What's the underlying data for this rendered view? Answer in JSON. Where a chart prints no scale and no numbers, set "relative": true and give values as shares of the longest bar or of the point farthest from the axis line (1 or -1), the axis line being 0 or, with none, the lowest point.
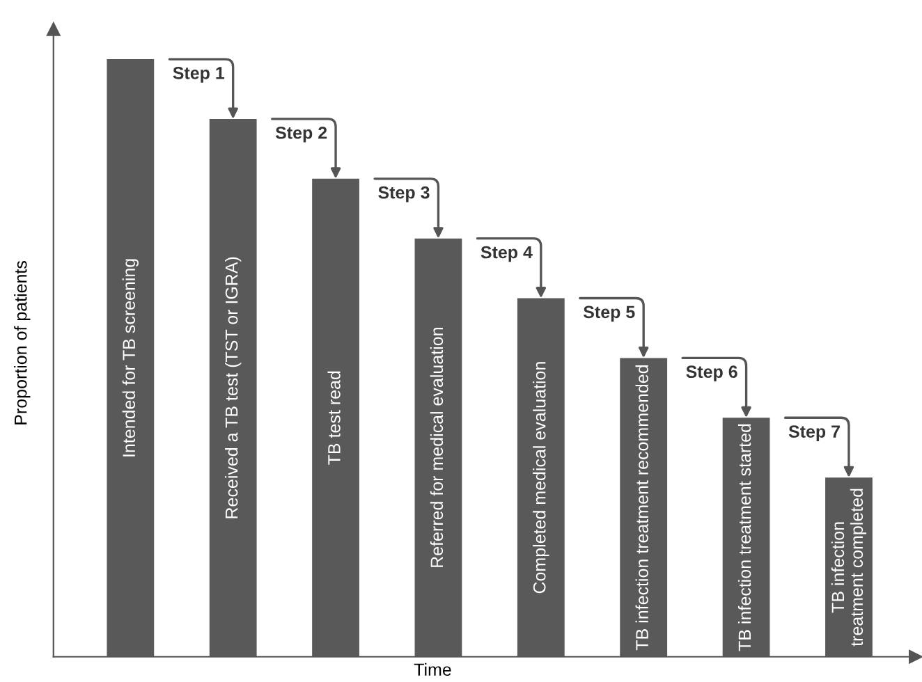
{
  "chart_data": {
    "type": "bar",
    "relative": true,
    "xlabel": "Time",
    "ylabel": "Proportion of patients",
    "categories": [
      "Intended for TB screening",
      "Received a TB test (TST or IGRA)",
      "TB test read",
      "Referred for medical evaluation",
      "Completed medical evaluation",
      "TB infection treatment recommended",
      "TB infection treatment started",
      "TB infection\ntreatment completed"
    ],
    "values": [
      1,
      0.9,
      0.8,
      0.7,
      0.6,
      0.5,
      0.4,
      0.3
    ],
    "color": "#595959",
    "annotations": [
      {
        "text": "Step 1",
        "x": "Received a TB test (TST or IGRA)",
        "y": 0.9
      },
      {
        "text": "Step 2",
        "x": "TB test read",
        "y": 0.8
      },
      {
        "text": "Step 3",
        "x": "Referred for medical evaluation",
        "y": 0.7
      },
      {
        "text": "Step 4",
        "x": "Completed medical evaluation",
        "y": 0.6
      },
      {
        "text": "Step 5",
        "x": "TB infection treatment recommended",
        "y": 0.5
      },
      {
        "text": "Step 6",
        "x": "TB infection treatment started",
        "y": 0.4
      },
      {
        "text": "Step 7",
        "x": "TB infection\ntreatment completed",
        "y": 0.3
      }
    ]
  }
}
